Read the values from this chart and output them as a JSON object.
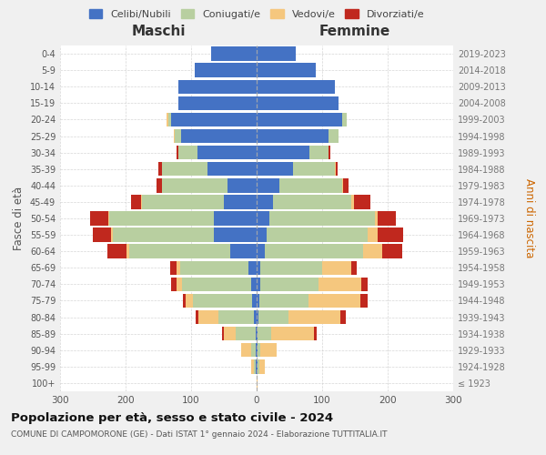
{
  "age_groups": [
    "100+",
    "95-99",
    "90-94",
    "85-89",
    "80-84",
    "75-79",
    "70-74",
    "65-69",
    "60-64",
    "55-59",
    "50-54",
    "45-49",
    "40-44",
    "35-39",
    "30-34",
    "25-29",
    "20-24",
    "15-19",
    "10-14",
    "5-9",
    "0-4"
  ],
  "birth_years": [
    "≤ 1923",
    "1924-1928",
    "1929-1933",
    "1934-1938",
    "1939-1943",
    "1944-1948",
    "1949-1953",
    "1954-1958",
    "1959-1963",
    "1964-1968",
    "1969-1973",
    "1974-1978",
    "1979-1983",
    "1984-1988",
    "1989-1993",
    "1994-1998",
    "1999-2003",
    "2004-2008",
    "2009-2013",
    "2014-2018",
    "2019-2023"
  ],
  "males": {
    "celibi": [
      0,
      1,
      1,
      2,
      4,
      7,
      9,
      12,
      40,
      65,
      65,
      50,
      45,
      75,
      90,
      115,
      130,
      120,
      120,
      95,
      70
    ],
    "coniugati": [
      0,
      3,
      8,
      30,
      55,
      90,
      105,
      105,
      155,
      155,
      160,
      125,
      100,
      70,
      30,
      10,
      5,
      0,
      0,
      0,
      0
    ],
    "vedovi": [
      0,
      4,
      15,
      18,
      30,
      12,
      8,
      5,
      3,
      2,
      1,
      1,
      0,
      0,
      0,
      2,
      2,
      0,
      0,
      0,
      0
    ],
    "divorziati": [
      0,
      0,
      0,
      3,
      4,
      4,
      8,
      10,
      30,
      28,
      28,
      15,
      8,
      5,
      2,
      0,
      0,
      0,
      0,
      0,
      0
    ]
  },
  "females": {
    "nubili": [
      0,
      1,
      1,
      2,
      3,
      4,
      5,
      5,
      12,
      15,
      20,
      25,
      35,
      55,
      80,
      110,
      130,
      125,
      120,
      90,
      60
    ],
    "coniugate": [
      0,
      3,
      5,
      20,
      45,
      75,
      90,
      95,
      150,
      155,
      160,
      120,
      95,
      65,
      30,
      15,
      8,
      0,
      0,
      0,
      0
    ],
    "vedove": [
      2,
      8,
      25,
      65,
      80,
      80,
      65,
      45,
      30,
      15,
      5,
      3,
      2,
      1,
      0,
      0,
      0,
      0,
      0,
      0,
      0
    ],
    "divorziate": [
      0,
      0,
      0,
      5,
      8,
      10,
      10,
      8,
      30,
      38,
      28,
      25,
      8,
      2,
      2,
      0,
      0,
      0,
      0,
      0,
      0
    ]
  },
  "colors": {
    "celibi_nubili": "#4472c4",
    "coniugati": "#b8cfa0",
    "vedovi": "#f5c77e",
    "divorziati": "#c0281e"
  },
  "xlim": 300,
  "title": "Popolazione per età, sesso e stato civile - 2024",
  "subtitle": "COMUNE DI CAMPOMORONE (GE) - Dati ISTAT 1° gennaio 2024 - Elaborazione TUTTITALIA.IT",
  "ylabel_left": "Fasce di età",
  "ylabel_right": "Anni di nascita",
  "xlabel_left": "Maschi",
  "xlabel_right": "Femmine",
  "legend_labels": [
    "Celibi/Nubili",
    "Coniugati/e",
    "Vedovi/e",
    "Divorziati/e"
  ],
  "bg_color": "#f0f0f0",
  "plot_bg": "#ffffff"
}
